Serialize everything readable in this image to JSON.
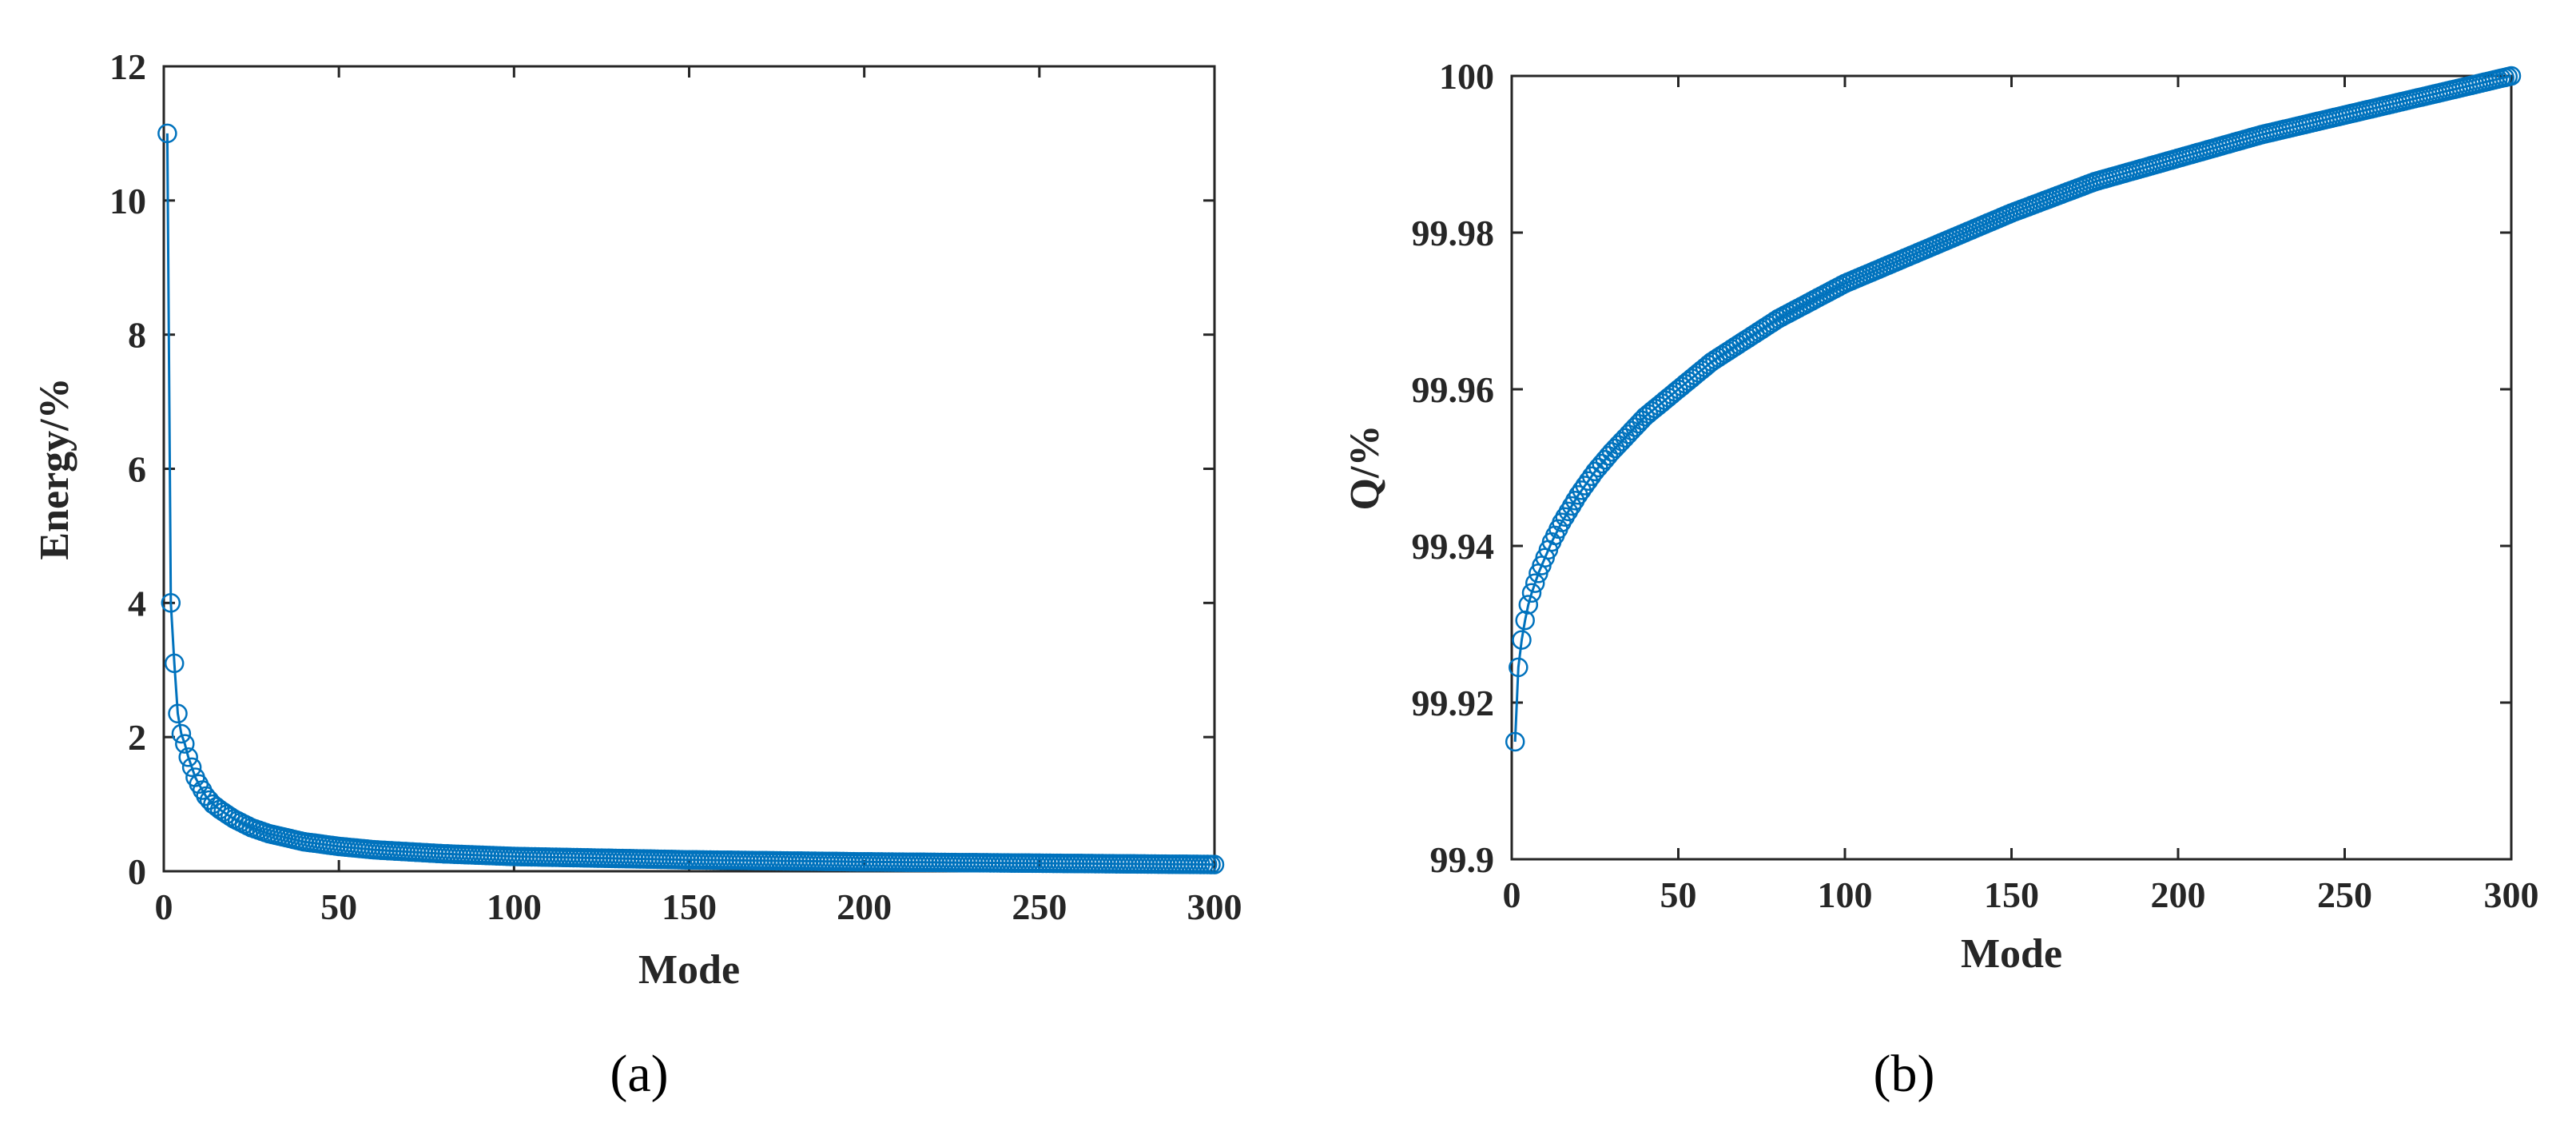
{
  "colors": {
    "series": "#0072BD",
    "axis": "#262626"
  },
  "chart_data": [
    {
      "type": "line",
      "panel_label": "(a)",
      "xlabel": "Mode",
      "ylabel": "Energy/%",
      "xlim": [
        0,
        300
      ],
      "ylim": [
        0,
        12
      ],
      "xticks": [
        "0",
        "50",
        "100",
        "150",
        "200",
        "250",
        "300"
      ],
      "yticks": [
        "0",
        "2",
        "4",
        "6",
        "8",
        "10",
        "12"
      ],
      "grid": false,
      "marker": "circle",
      "series": [
        {
          "x": [
            1,
            2,
            3,
            4,
            5,
            6,
            7,
            8,
            9,
            10,
            12,
            14,
            16,
            18,
            20,
            25,
            30,
            40,
            50,
            60,
            80,
            100,
            150,
            200,
            250,
            300
          ],
          "y": [
            11.0,
            4.0,
            3.1,
            2.35,
            2.05,
            1.9,
            1.7,
            1.55,
            1.4,
            1.3,
            1.12,
            1.0,
            0.92,
            0.85,
            0.78,
            0.65,
            0.56,
            0.44,
            0.37,
            0.32,
            0.26,
            0.22,
            0.17,
            0.14,
            0.12,
            0.1
          ]
        }
      ]
    },
    {
      "type": "line",
      "panel_label": "(b)",
      "xlabel": "Mode",
      "ylabel": "Q/%",
      "xlim": [
        0,
        300
      ],
      "ylim": [
        99.9,
        100
      ],
      "xticks": [
        "0",
        "50",
        "100",
        "150",
        "200",
        "250",
        "300"
      ],
      "yticks": [
        "99.9",
        "99.92",
        "99.94",
        "99.96",
        "99.98",
        "100"
      ],
      "grid": false,
      "marker": "circle",
      "series": [
        {
          "x": [
            1,
            2,
            3,
            4,
            5,
            6,
            8,
            10,
            12,
            15,
            20,
            25,
            30,
            40,
            50,
            60,
            80,
            100,
            125,
            150,
            175,
            200,
            225,
            250,
            275,
            300
          ],
          "y": [
            99.915,
            99.9245,
            99.928,
            99.9305,
            99.9325,
            99.934,
            99.9365,
            99.9385,
            99.9405,
            99.943,
            99.9465,
            99.9495,
            99.952,
            99.9565,
            99.96,
            99.9635,
            99.969,
            99.9735,
            99.978,
            99.9825,
            99.9865,
            99.9895,
            99.9925,
            99.995,
            99.9975,
            100.0
          ]
        }
      ]
    }
  ]
}
